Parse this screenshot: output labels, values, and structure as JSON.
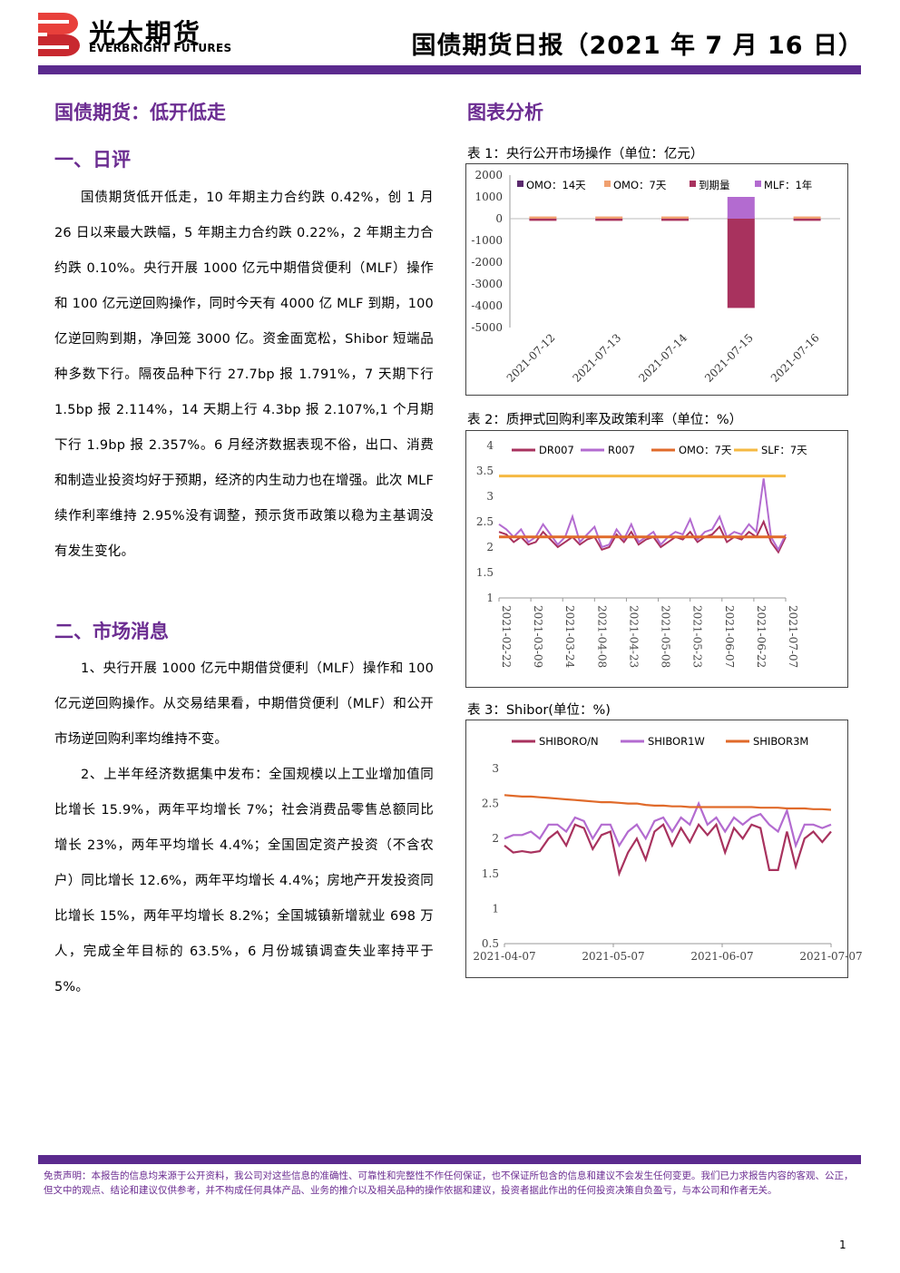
{
  "header": {
    "logo_cn": "光大期货",
    "logo_en": "EVERBRIGHT FUTURES",
    "report_title": "国债期货日报（2021 年 7 月 16 日）"
  },
  "left": {
    "headline": "国债期货：低开低走",
    "section1_title": "一、日评",
    "section1_paragraphs": [
      "国债期货低开低走，10 年期主力合约跌 0.42%，创 1 月 26 日以来最大跌幅，5 年期主力合约跌 0.22%，2 年期主力合约跌 0.10%。央行开展 1000 亿元中期借贷便利（MLF）操作和 100 亿元逆回购操作，同时今天有 4000 亿 MLF 到期，100 亿逆回购到期，净回笼 3000 亿。资金面宽松，Shibor 短端品种多数下行。隔夜品种下行 27.7bp 报 1.791%，7 天期下行 1.5bp 报 2.114%，14 天期上行 4.3bp 报 2.107%,1 个月期下行 1.9bp 报 2.357%。6 月经济数据表现不俗，出口、消费和制造业投资均好于预期，经济的内生动力也在增强。此次 MLF 续作利率维持 2.95%没有调整，预示货币政策以稳为主基调没有发生变化。"
    ],
    "section2_title": "二、市场消息",
    "section2_paragraphs": [
      "1、央行开展 1000 亿元中期借贷便利（MLF）操作和 100 亿元逆回购操作。从交易结果看，中期借贷便利（MLF）和公开市场逆回购利率均维持不变。",
      "2、上半年经济数据集中发布：全国规模以上工业增加值同比增长 15.9%，两年平均增长 7%；社会消费品零售总额同比增长 23%，两年平均增长 4.4%；全国固定资产投资（不含农户）同比增长 12.6%，两年平均增长 4.4%；房地产开发投资同比增长 15%，两年平均增长 8.2%；全国城镇新增就业 698 万人，完成全年目标的 63.5%，6 月份城镇调查失业率持平于 5%。"
    ]
  },
  "right": {
    "section_title": "图表分析"
  },
  "chart_data": [
    {
      "type": "bar",
      "caption": "表 1：央行公开市场操作（单位：亿元）",
      "categories": [
        "2021-07-12",
        "2021-07-13",
        "2021-07-14",
        "2021-07-15",
        "2021-07-16"
      ],
      "ylim": [
        -5000,
        2000
      ],
      "yticks": [
        2000,
        1000,
        0,
        -1000,
        -2000,
        -3000,
        -4000,
        -5000
      ],
      "series": [
        {
          "name": "OMO：14天",
          "color": "#5b2a6e",
          "values": [
            0,
            0,
            0,
            0,
            0
          ]
        },
        {
          "name": "OMO：7天",
          "color": "#f0a070",
          "values": [
            100,
            100,
            100,
            100,
            100
          ]
        },
        {
          "name": "到期量",
          "color": "#a8325e",
          "values": [
            -100,
            -100,
            -100,
            -4100,
            -100
          ]
        },
        {
          "name": "MLF：1年",
          "color": "#b36bd0",
          "values": [
            0,
            0,
            0,
            1000,
            0
          ]
        }
      ],
      "legend": "top"
    },
    {
      "type": "line",
      "caption": "表 2：质押式回购利率及政策利率（单位：%）",
      "x_labels": [
        "2021-02-22",
        "2021-03-09",
        "2021-03-24",
        "2021-04-08",
        "2021-04-23",
        "2021-05-08",
        "2021-05-23",
        "2021-06-07",
        "2021-06-22",
        "2021-07-07"
      ],
      "ylim": [
        1,
        4
      ],
      "yticks": [
        4,
        3.5,
        3,
        2.5,
        2,
        1.5,
        1
      ],
      "series": [
        {
          "name": "DR007",
          "color": "#a8325e",
          "values": [
            2.3,
            2.25,
            2.1,
            2.2,
            2.05,
            2.1,
            2.3,
            2.15,
            2.0,
            2.1,
            2.2,
            2.05,
            2.15,
            2.2,
            1.95,
            2.0,
            2.25,
            2.1,
            2.3,
            2.05,
            2.15,
            2.2,
            2.0,
            2.1,
            2.2,
            2.15,
            2.3,
            2.1,
            2.2,
            2.25,
            2.4,
            2.1,
            2.2,
            2.15,
            2.3,
            2.2,
            2.5,
            2.1,
            1.9,
            2.2
          ]
        },
        {
          "name": "R007",
          "color": "#b36bd0",
          "values": [
            2.45,
            2.35,
            2.2,
            2.35,
            2.1,
            2.2,
            2.45,
            2.25,
            2.05,
            2.2,
            2.6,
            2.1,
            2.25,
            2.4,
            2.0,
            2.05,
            2.35,
            2.15,
            2.45,
            2.1,
            2.2,
            2.3,
            2.05,
            2.2,
            2.3,
            2.25,
            2.55,
            2.15,
            2.3,
            2.35,
            2.6,
            2.2,
            2.3,
            2.25,
            2.45,
            2.3,
            3.35,
            2.2,
            1.95,
            2.25
          ]
        },
        {
          "name": "OMO：7天",
          "color": "#e06a2a",
          "values": [
            2.2,
            2.2,
            2.2,
            2.2,
            2.2,
            2.2,
            2.2,
            2.2,
            2.2,
            2.2,
            2.2,
            2.2,
            2.2,
            2.2,
            2.2,
            2.2,
            2.2,
            2.2,
            2.2,
            2.2,
            2.2,
            2.2,
            2.2,
            2.2,
            2.2,
            2.2,
            2.2,
            2.2,
            2.2,
            2.2,
            2.2,
            2.2,
            2.2,
            2.2,
            2.2,
            2.2,
            2.2,
            2.2,
            2.2,
            2.2
          ]
        },
        {
          "name": "SLF：7天",
          "color": "#f5b942",
          "values": [
            3.4,
            3.4,
            3.4,
            3.4,
            3.4,
            3.4,
            3.4,
            3.4,
            3.4,
            3.4,
            3.4,
            3.4,
            3.4,
            3.4,
            3.4,
            3.4,
            3.4,
            3.4,
            3.4,
            3.4,
            3.4,
            3.4,
            3.4,
            3.4,
            3.4,
            3.4,
            3.4,
            3.4,
            3.4,
            3.4,
            3.4,
            3.4,
            3.4,
            3.4,
            3.4,
            3.4,
            3.4,
            3.4,
            3.4,
            3.4
          ]
        }
      ],
      "legend": "top"
    },
    {
      "type": "line",
      "caption": "表 3：Shibor(单位：%)",
      "x_labels": [
        "2021-04-07",
        "2021-05-07",
        "2021-06-07",
        "2021-07-07"
      ],
      "ylim": [
        0.5,
        3
      ],
      "yticks": [
        3,
        2.5,
        2,
        1.5,
        1,
        0.5
      ],
      "series": [
        {
          "name": "SHIBORO/N",
          "color": "#a8325e",
          "values": [
            1.9,
            1.8,
            1.82,
            1.8,
            1.82,
            2.0,
            2.1,
            1.9,
            2.2,
            2.15,
            1.85,
            2.05,
            2.1,
            1.5,
            1.8,
            2.0,
            1.7,
            2.1,
            2.2,
            1.9,
            2.15,
            1.95,
            2.2,
            2.05,
            2.2,
            1.8,
            2.15,
            2.0,
            2.2,
            2.15,
            1.55,
            1.55,
            2.1,
            1.6,
            2.0,
            2.1,
            1.95,
            2.1
          ]
        },
        {
          "name": "SHIBOR1W",
          "color": "#b36bd0",
          "values": [
            2.0,
            2.05,
            2.05,
            2.1,
            2.0,
            2.2,
            2.2,
            2.1,
            2.3,
            2.25,
            2.0,
            2.2,
            2.2,
            1.9,
            2.1,
            2.2,
            2.0,
            2.25,
            2.3,
            2.1,
            2.3,
            2.2,
            2.5,
            2.2,
            2.3,
            2.1,
            2.3,
            2.2,
            2.3,
            2.35,
            2.2,
            2.1,
            2.4,
            1.9,
            2.2,
            2.2,
            2.15,
            2.2
          ]
        },
        {
          "name": "SHIBOR3M",
          "color": "#e06a2a",
          "values": [
            2.62,
            2.61,
            2.6,
            2.6,
            2.59,
            2.58,
            2.57,
            2.56,
            2.55,
            2.54,
            2.53,
            2.52,
            2.52,
            2.51,
            2.5,
            2.5,
            2.48,
            2.47,
            2.47,
            2.46,
            2.46,
            2.45,
            2.45,
            2.45,
            2.45,
            2.45,
            2.45,
            2.45,
            2.45,
            2.44,
            2.44,
            2.44,
            2.43,
            2.43,
            2.43,
            2.42,
            2.42,
            2.41
          ]
        }
      ],
      "legend": "top"
    }
  ],
  "footer": {
    "disclaimer": "免责声明：本报告的信息均来源于公开资料，我公司对这些信息的准确性、可靠性和完整性不作任何保证，也不保证所包含的信息和建议不会发生任何变更。我们已力求报告内容的客观、公正，但文中的观点、结论和建议仅供参考，并不构成任何具体产品、业务的推介以及相关品种的操作依据和建议，投资者据此作出的任何投资决策自负盈亏，与本公司和作者无关。",
    "page_number": "1"
  },
  "colors": {
    "brand_purple": "#5b2a8e",
    "heading_purple": "#6b2c91",
    "logo_red": "#e8403b"
  }
}
